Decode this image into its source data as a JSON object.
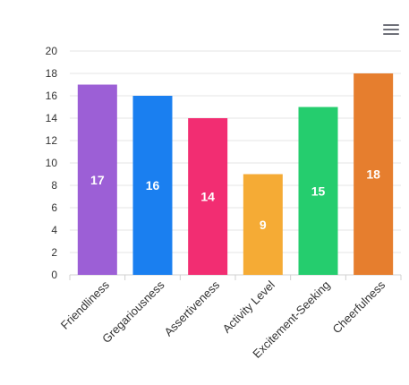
{
  "toolbar": {
    "menu_icon": "hamburger-menu-icon"
  },
  "chart_data": {
    "type": "bar",
    "title": "",
    "xlabel": "",
    "ylabel": "",
    "categories": [
      "Friendliness",
      "Gregariousness",
      "Assertiveness",
      "Activity Level",
      "Excitement-Seeking",
      "Cheerfulness"
    ],
    "values": [
      17,
      16,
      14,
      9,
      15,
      18
    ],
    "colors": [
      "#9c5fd6",
      "#1a7ff0",
      "#f22d72",
      "#f5ab35",
      "#25cd6e",
      "#e67e2e"
    ],
    "ylim": [
      0,
      20
    ],
    "yticks": [
      0,
      2,
      4,
      6,
      8,
      10,
      12,
      14,
      16,
      18,
      20
    ],
    "grid": true,
    "data_labels": true,
    "legend": "none"
  }
}
